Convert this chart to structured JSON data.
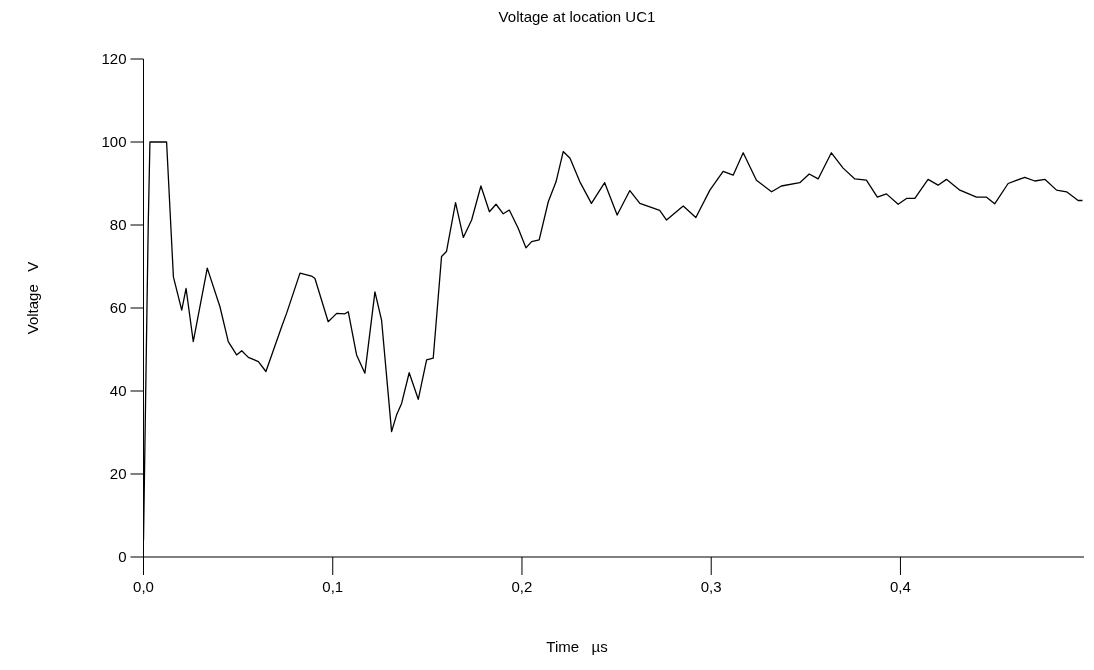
{
  "chart_data": {
    "type": "line",
    "title": "Voltage at location UC1",
    "xlabel": "Time   µs",
    "ylabel": "Voltage   V",
    "xlim": [
      0,
      0.497
    ],
    "ylim": [
      0,
      120
    ],
    "xticks": [
      {
        "value": 0,
        "label": "0,0"
      },
      {
        "value": 0.1,
        "label": "0,1"
      },
      {
        "value": 0.2,
        "label": "0,2"
      },
      {
        "value": 0.3,
        "label": "0,3"
      },
      {
        "value": 0.4,
        "label": "0,4"
      }
    ],
    "yticks": [
      0,
      20,
      40,
      60,
      80,
      100,
      120
    ],
    "grid": false,
    "legend": false,
    "marker": "none",
    "line_style": "solid",
    "series": [
      {
        "color": "#000000",
        "x": [
          0,
          0.0015,
          0.0025,
          0.0034,
          0.0122,
          0.0158,
          0.0202,
          0.0225,
          0.0263,
          0.0337,
          0.0404,
          0.0448,
          0.0492,
          0.0519,
          0.0554,
          0.0607,
          0.0647,
          0.073,
          0.0756,
          0.0827,
          0.0888,
          0.0906,
          0.0976,
          0.1021,
          0.1064,
          0.1082,
          0.1126,
          0.117,
          0.1223,
          0.1258,
          0.1311,
          0.1337,
          0.1364,
          0.1404,
          0.1452,
          0.1496,
          0.1531,
          0.1575,
          0.1601,
          0.1649,
          0.169,
          0.1734,
          0.1783,
          0.1828,
          0.1863,
          0.1901,
          0.1933,
          0.198,
          0.2021,
          0.2051,
          0.2091,
          0.2139,
          0.218,
          0.2218,
          0.2254,
          0.2306,
          0.2367,
          0.2437,
          0.2503,
          0.257,
          0.2623,
          0.2728,
          0.2764,
          0.2852,
          0.2919,
          0.2993,
          0.3063,
          0.3116,
          0.3169,
          0.3239,
          0.3319,
          0.3371,
          0.3468,
          0.3518,
          0.3565,
          0.3635,
          0.3697,
          0.3759,
          0.382,
          0.3878,
          0.3926,
          0.3988,
          0.4032,
          0.4076,
          0.4146,
          0.4199,
          0.4243,
          0.4314,
          0.4402,
          0.4455,
          0.4498,
          0.4569,
          0.4657,
          0.471,
          0.4763,
          0.4825,
          0.4878,
          0.4939,
          0.4962
        ],
        "values": [
          4,
          50,
          80,
          100,
          100,
          67.5,
          59.5,
          64.7,
          51.9,
          69.6,
          60.3,
          51.9,
          48.7,
          49.7,
          48.1,
          47.1,
          44.7,
          55.5,
          58.7,
          68.4,
          67.7,
          67.1,
          56.7,
          58.7,
          58.6,
          59.1,
          48.7,
          44.3,
          63.9,
          57.1,
          30.2,
          34.2,
          37,
          44.4,
          38,
          47.5,
          47.9,
          72.4,
          73.6,
          85.4,
          77,
          81.2,
          89.4,
          83.2,
          85,
          82.7,
          83.6,
          79.2,
          74.5,
          76,
          76.4,
          85.6,
          90.4,
          97.7,
          96.1,
          90.4,
          85.2,
          90.2,
          82.4,
          88.3,
          85.2,
          83.5,
          81.2,
          84.6,
          81.8,
          88.4,
          92.9,
          92,
          97.4,
          90.8,
          88,
          89.4,
          90.2,
          92.3,
          91.1,
          97.4,
          93.7,
          91.1,
          90.8,
          86.7,
          87.5,
          85,
          86.4,
          86.4,
          91,
          89.6,
          91,
          88.4,
          86.7,
          86.7,
          85.1,
          90,
          91.5,
          90.6,
          91,
          88.4,
          88,
          85.9,
          85.9
        ]
      }
    ]
  }
}
